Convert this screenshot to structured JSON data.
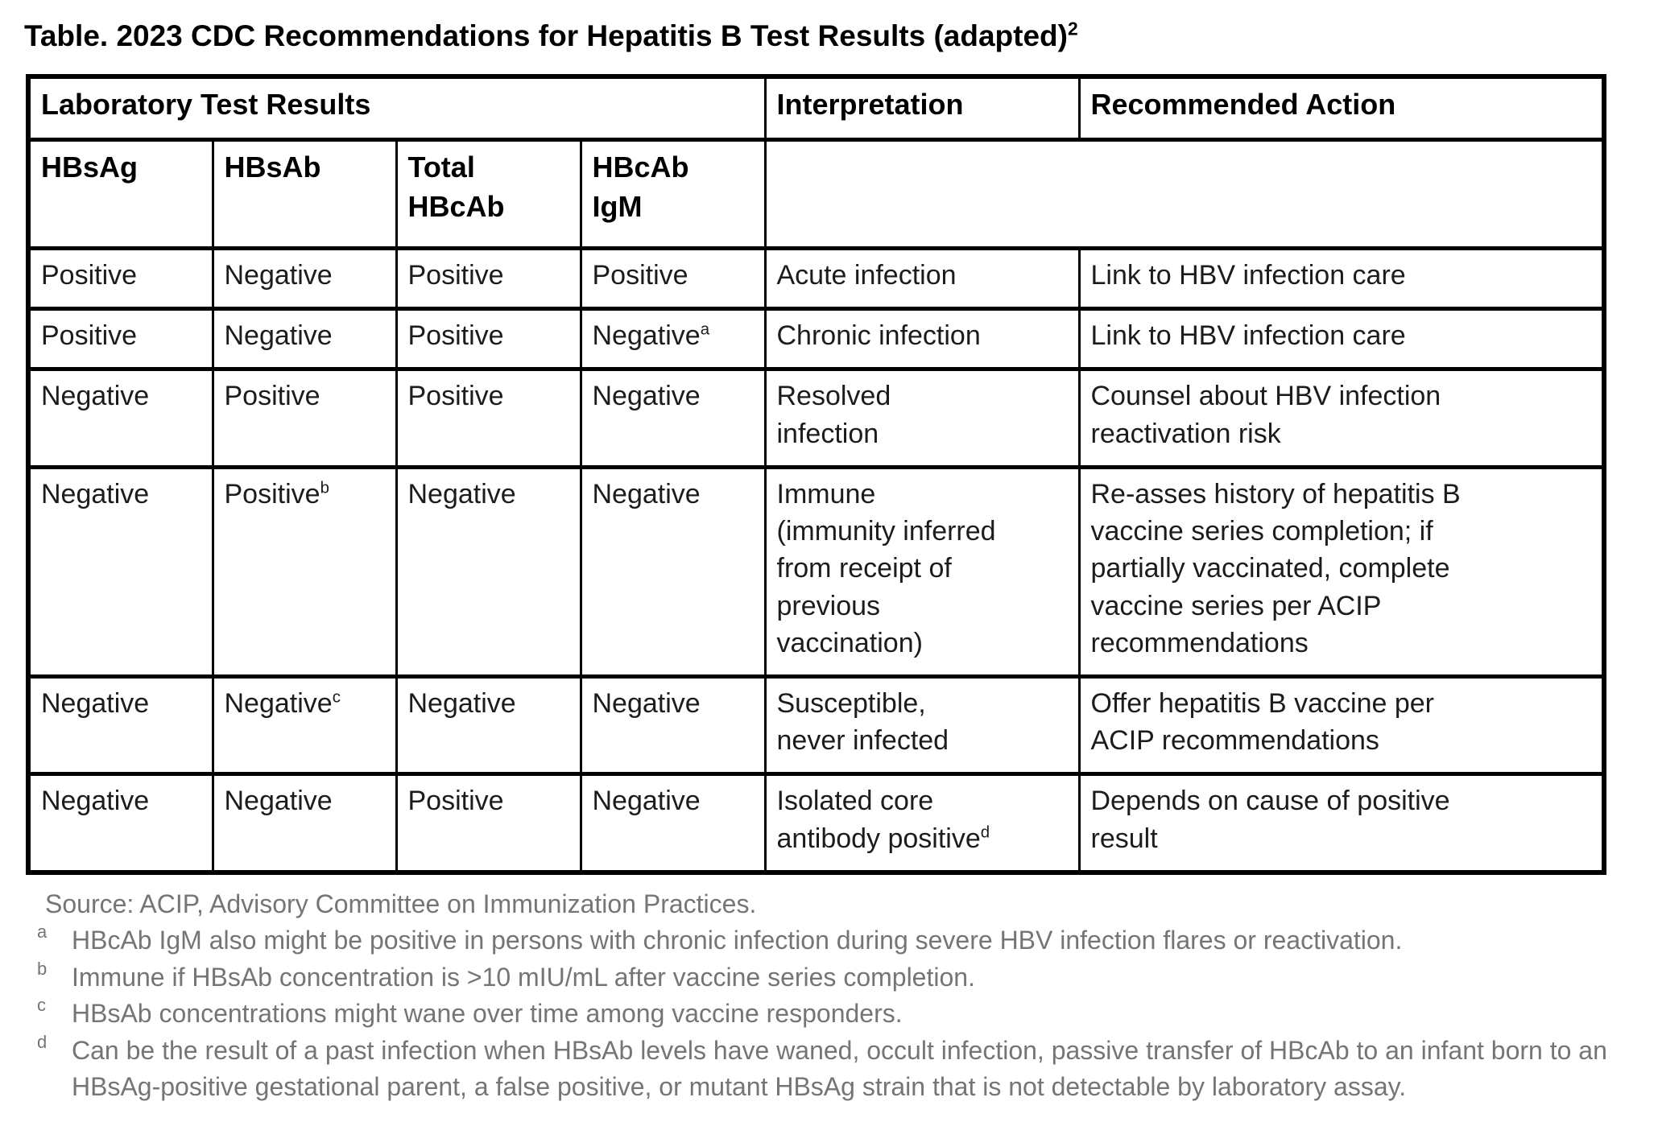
{
  "title": {
    "text": "Table. 2023 CDC Recommendations for Hepatitis B Test Results (adapted)",
    "superscript": "2"
  },
  "colors": {
    "background": "#ffffff",
    "table_border": "#000000",
    "body_text": "#1c1c1c",
    "footnote_text": "#757575"
  },
  "table": {
    "header": {
      "lab_results": "Laboratory Test Results",
      "interpretation": "Interpretation",
      "recommended_action": "Recommended Action",
      "sub_columns": [
        "HBsAg",
        "HBsAb",
        "Total\nHBcAb",
        "HBcAb\nIgM"
      ]
    },
    "rows": [
      {
        "results": [
          {
            "value": "Positive"
          },
          {
            "value": "Negative"
          },
          {
            "value": "Positive"
          },
          {
            "value": "Positive"
          }
        ],
        "interpretation": {
          "value": "Acute infection"
        },
        "action": {
          "value": "Link to HBV infection care"
        }
      },
      {
        "results": [
          {
            "value": "Positive"
          },
          {
            "value": "Negative"
          },
          {
            "value": "Positive"
          },
          {
            "value": "Negative",
            "sup": "a"
          }
        ],
        "interpretation": {
          "value": "Chronic infection"
        },
        "action": {
          "value": "Link to HBV infection care"
        }
      },
      {
        "results": [
          {
            "value": "Negative"
          },
          {
            "value": "Positive"
          },
          {
            "value": "Positive"
          },
          {
            "value": "Negative"
          }
        ],
        "interpretation": {
          "value": "Resolved\ninfection"
        },
        "action": {
          "value": "Counsel about HBV infection\nreactivation risk"
        }
      },
      {
        "results": [
          {
            "value": "Negative"
          },
          {
            "value": "Positive",
            "sup": "b"
          },
          {
            "value": "Negative"
          },
          {
            "value": "Negative"
          }
        ],
        "interpretation": {
          "value": "Immune\n(immunity inferred\nfrom receipt of\nprevious\nvaccination)"
        },
        "action": {
          "value": "Re-asses history of hepatitis B\nvaccine series completion; if\npartially vaccinated, complete\nvaccine series per ACIP\nrecommendations"
        }
      },
      {
        "results": [
          {
            "value": "Negative"
          },
          {
            "value": "Negative",
            "sup": "c"
          },
          {
            "value": "Negative"
          },
          {
            "value": "Negative"
          }
        ],
        "interpretation": {
          "value": "Susceptible,\nnever infected"
        },
        "action": {
          "value": "Offer hepatitis B vaccine per\nACIP recommendations"
        }
      },
      {
        "results": [
          {
            "value": "Negative"
          },
          {
            "value": "Negative"
          },
          {
            "value": "Positive"
          },
          {
            "value": "Negative"
          }
        ],
        "interpretation": {
          "value": "Isolated core\nantibody positive",
          "sup": "d"
        },
        "action": {
          "value": "Depends on cause of positive\nresult"
        }
      }
    ]
  },
  "footnotes": {
    "source": "Source: ACIP, Advisory Committee on Immunization Practices.",
    "notes": [
      {
        "marker": "a",
        "text": "HBcAb IgM also might be positive in persons with chronic infection during severe HBV infection flares or reactivation."
      },
      {
        "marker": "b",
        "text": "Immune if HBsAb concentration is >10 mIU/mL after vaccine series completion."
      },
      {
        "marker": "c",
        "text": "HBsAb concentrations might wane over time among vaccine responders."
      },
      {
        "marker": "d",
        "text": "Can be the result of a past infection when HBsAb levels have waned, occult infection, passive transfer of HBcAb to an infant born to an HBsAg-positive gestational parent, a false positive, or mutant HBsAg strain that is not detectable by laboratory assay."
      }
    ]
  }
}
